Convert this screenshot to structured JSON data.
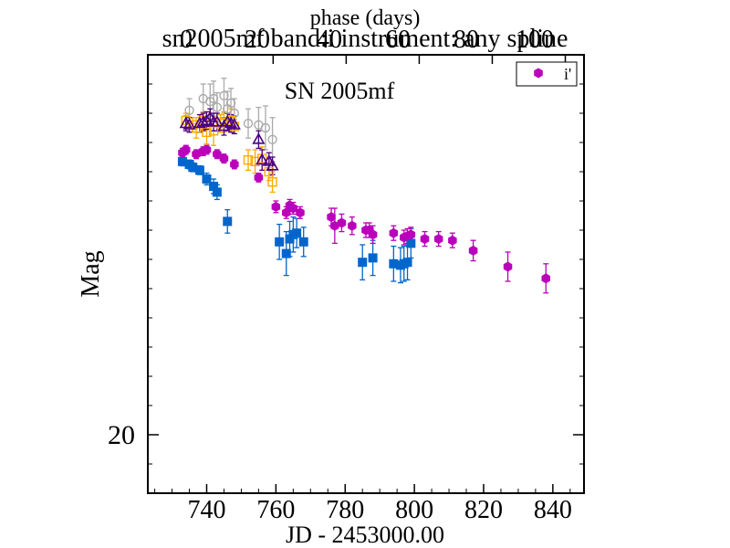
{
  "chart_data": {
    "type": "scatter",
    "title": "sn2005mf band:i instrument: any spline",
    "inset_label": "SN 2005mf",
    "xlabel": "JD - 2453000.00",
    "ylabel": "Mag",
    "top_xlabel": "phase (days)",
    "xlim": [
      723,
      849
    ],
    "ylim": [
      20.4,
      17.4
    ],
    "y_inverted": true,
    "grid": false,
    "legend_position": "top-right",
    "x_ticks": [
      740,
      760,
      780,
      800,
      820,
      840
    ],
    "x_tick_labels": [
      "740",
      "760",
      "780",
      "800",
      "820",
      "840"
    ],
    "y_ticks": [
      20
    ],
    "y_tick_labels": [
      "20"
    ],
    "top_ticks": [
      20,
      40,
      60,
      80,
      100
    ],
    "top_tick_labels": [
      "20",
      "40",
      "60",
      "80",
      "100"
    ],
    "top_tick_jd": [
      759.2,
      780.3,
      801.4,
      822.5,
      843.6
    ],
    "phase_labels_visible": [
      "0",
      "20",
      "40",
      "60",
      "80",
      "100"
    ],
    "series": [
      {
        "name": "i'",
        "in_legend": true,
        "marker": "hexagon",
        "color": "#bb00bb",
        "points": [
          [
            733,
            18.07,
            0.03
          ],
          [
            734,
            18.05,
            0.03
          ],
          [
            737,
            18.08,
            0.03
          ],
          [
            739,
            18.06,
            0.03
          ],
          [
            740,
            18.05,
            0.03
          ],
          [
            743,
            18.08,
            0.03
          ],
          [
            745,
            18.11,
            0.03
          ],
          [
            748,
            18.15,
            0.03
          ],
          [
            755,
            18.24,
            0.03
          ],
          [
            760,
            18.44,
            0.04
          ],
          [
            763,
            18.48,
            0.04
          ],
          [
            764,
            18.43,
            0.04
          ],
          [
            765,
            18.45,
            0.04
          ],
          [
            767,
            18.48,
            0.04
          ],
          [
            776,
            18.51,
            0.06
          ],
          [
            777,
            18.57,
            0.12
          ],
          [
            779,
            18.55,
            0.06
          ],
          [
            782,
            18.57,
            0.06
          ],
          [
            786,
            18.6,
            0.05
          ],
          [
            787,
            18.6,
            0.05
          ],
          [
            788,
            18.63,
            0.06
          ],
          [
            794,
            18.62,
            0.05
          ],
          [
            797,
            18.65,
            0.05
          ],
          [
            798,
            18.64,
            0.05
          ],
          [
            799,
            18.63,
            0.05
          ],
          [
            803,
            18.66,
            0.05
          ],
          [
            807,
            18.66,
            0.05
          ],
          [
            811,
            18.67,
            0.05
          ],
          [
            817,
            18.74,
            0.07
          ],
          [
            827,
            18.85,
            0.1
          ],
          [
            838,
            18.93,
            0.1
          ]
        ]
      },
      {
        "name": "",
        "in_legend": false,
        "marker": "square",
        "color": "#0066cc",
        "points": [
          [
            733,
            18.13,
            0.03
          ],
          [
            735,
            18.15,
            0.03
          ],
          [
            736,
            18.17,
            0.03
          ],
          [
            738,
            18.19,
            0.03
          ],
          [
            740,
            18.25,
            0.04
          ],
          [
            742,
            18.3,
            0.05
          ],
          [
            743,
            18.34,
            0.05
          ],
          [
            746,
            18.54,
            0.08
          ],
          [
            761,
            18.68,
            0.12
          ],
          [
            763,
            18.76,
            0.15
          ],
          [
            764,
            18.66,
            0.12
          ],
          [
            765,
            18.63,
            0.12
          ],
          [
            766,
            18.62,
            0.1
          ],
          [
            768,
            18.68,
            0.1
          ],
          [
            785,
            18.82,
            0.12
          ],
          [
            788,
            18.79,
            0.12
          ],
          [
            794,
            18.83,
            0.12
          ],
          [
            796,
            18.84,
            0.12
          ],
          [
            797,
            18.83,
            0.12
          ],
          [
            798,
            18.82,
            0.12
          ],
          [
            799,
            18.69,
            0.1
          ]
        ]
      },
      {
        "name": "",
        "in_legend": false,
        "marker": "square-open",
        "color": "#ffaa00",
        "points": [
          [
            734,
            17.85,
            0.05
          ],
          [
            736,
            17.88,
            0.05
          ],
          [
            737,
            17.9,
            0.07
          ],
          [
            739,
            17.85,
            0.06
          ],
          [
            740,
            17.93,
            0.08
          ],
          [
            742,
            17.92,
            0.1
          ],
          [
            744,
            17.87,
            0.06
          ],
          [
            745,
            17.86,
            0.07
          ],
          [
            747,
            17.85,
            0.08
          ],
          [
            748,
            17.89,
            0.05
          ],
          [
            752,
            18.12,
            0.07
          ],
          [
            754,
            18.13,
            0.08
          ],
          [
            756,
            18.11,
            0.08
          ],
          [
            758,
            18.2,
            0.06
          ],
          [
            759,
            18.27,
            0.07
          ]
        ]
      },
      {
        "name": "",
        "in_legend": false,
        "marker": "triangle-open",
        "color": "#4b0082",
        "points": [
          [
            734,
            17.87,
            0.05
          ],
          [
            735,
            17.88,
            0.05
          ],
          [
            738,
            17.87,
            0.06
          ],
          [
            739,
            17.86,
            0.06
          ],
          [
            740,
            17.85,
            0.06
          ],
          [
            741,
            17.83,
            0.06
          ],
          [
            742,
            17.86,
            0.06
          ],
          [
            743,
            17.86,
            0.06
          ],
          [
            745,
            17.89,
            0.06
          ],
          [
            746,
            17.86,
            0.06
          ],
          [
            747,
            17.87,
            0.06
          ],
          [
            748,
            17.88,
            0.06
          ],
          [
            755,
            17.98,
            0.06
          ],
          [
            756,
            18.12,
            0.07
          ],
          [
            758,
            18.13,
            0.06
          ],
          [
            759,
            18.16,
            0.06
          ]
        ]
      },
      {
        "name": "",
        "in_legend": false,
        "marker": "circle-open",
        "color": "#aaaaaa",
        "points": [
          [
            735,
            17.78,
            0.08
          ],
          [
            739,
            17.7,
            0.1
          ],
          [
            741,
            17.72,
            0.12
          ],
          [
            742,
            17.7,
            0.12
          ],
          [
            743,
            17.76,
            0.1
          ],
          [
            745,
            17.68,
            0.12
          ],
          [
            746,
            17.77,
            0.12
          ],
          [
            747,
            17.73,
            0.1
          ],
          [
            748,
            17.8,
            0.1
          ],
          [
            752,
            17.87,
            0.1
          ],
          [
            755,
            17.88,
            0.12
          ],
          [
            757,
            17.9,
            0.15
          ],
          [
            759,
            17.98,
            0.15
          ]
        ]
      }
    ]
  }
}
